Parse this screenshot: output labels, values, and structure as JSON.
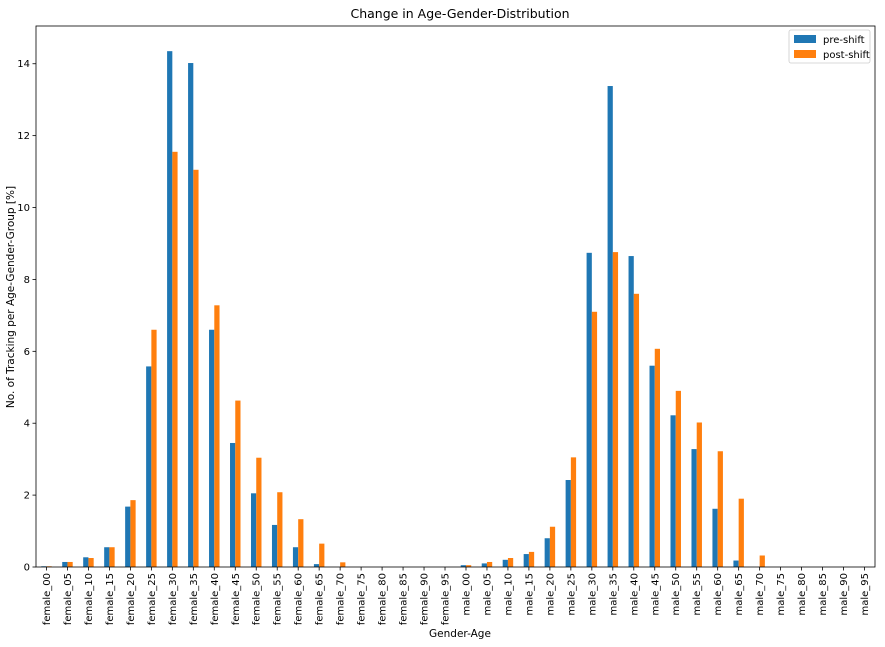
{
  "chart_data": {
    "type": "bar",
    "title": "Change in Age-Gender-Distribution",
    "xlabel": "Gender-Age",
    "ylabel": "No. of Tracking per Age-Gender-Group [%]",
    "ylim": [
      0,
      15.05
    ],
    "yticks": [
      0,
      2,
      4,
      6,
      8,
      10,
      12,
      14
    ],
    "legend_position": "top-right",
    "categories": [
      "female_00",
      "female_05",
      "female_10",
      "female_15",
      "female_20",
      "female_25",
      "female_30",
      "female_35",
      "female_40",
      "female_45",
      "female_50",
      "female_55",
      "female_60",
      "female_65",
      "female_70",
      "female_75",
      "female_80",
      "female_85",
      "female_90",
      "female_95",
      "male_00",
      "male_05",
      "male_10",
      "male_15",
      "male_20",
      "male_25",
      "male_30",
      "male_35",
      "male_40",
      "male_45",
      "male_50",
      "male_55",
      "male_60",
      "male_65",
      "male_70",
      "male_75",
      "male_80",
      "male_85",
      "male_90",
      "male_95"
    ],
    "series": [
      {
        "name": "pre-shift",
        "color": "#1f77b4",
        "values": [
          0.02,
          0.14,
          0.27,
          0.55,
          1.68,
          5.58,
          14.35,
          14.02,
          6.6,
          3.45,
          2.05,
          1.17,
          0.55,
          0.08,
          0,
          0,
          0,
          0,
          0,
          0,
          0.05,
          0.1,
          0.2,
          0.36,
          0.8,
          2.42,
          8.74,
          13.38,
          8.65,
          5.6,
          4.22,
          3.28,
          1.62,
          0.18,
          0,
          0,
          0,
          0,
          0,
          0
        ]
      },
      {
        "name": "post-shift",
        "color": "#ff7f0e",
        "values": [
          0.02,
          0.14,
          0.25,
          0.55,
          1.86,
          6.6,
          11.55,
          11.05,
          7.28,
          4.63,
          3.04,
          2.08,
          1.33,
          0.65,
          0.13,
          0,
          0,
          0,
          0,
          0,
          0.05,
          0.14,
          0.25,
          0.42,
          1.12,
          3.05,
          7.1,
          8.76,
          7.6,
          6.07,
          4.9,
          4.02,
          3.22,
          1.9,
          0.32,
          0,
          0,
          0,
          0,
          0
        ]
      }
    ]
  }
}
